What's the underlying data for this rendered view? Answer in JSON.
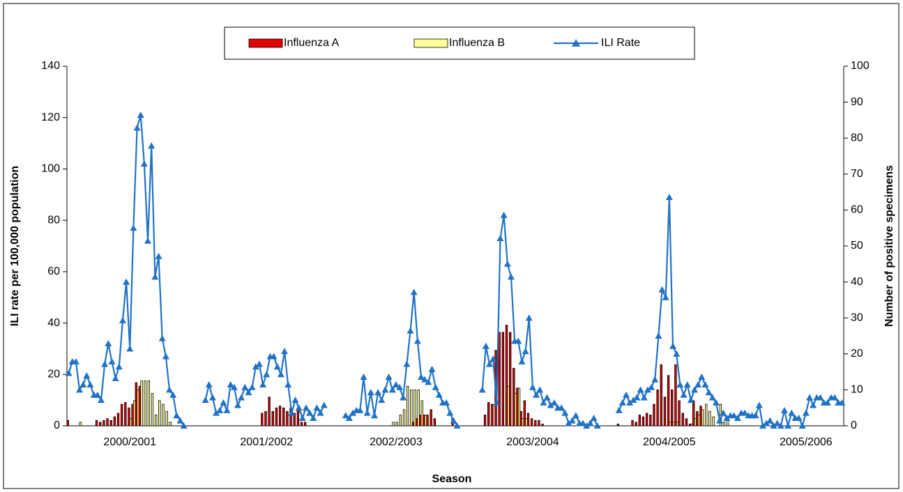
{
  "chart_data": {
    "type": "combo",
    "x_label": "Season",
    "y_label": "ILI rate per 100,000 population",
    "y2_label": "Number of positive specimens",
    "ylim": [
      0,
      140
    ],
    "yticks": [
      0,
      20,
      40,
      60,
      80,
      100,
      120,
      140
    ],
    "y2lim": [
      0,
      100
    ],
    "y2ticks": [
      0,
      10,
      20,
      30,
      40,
      50,
      60,
      70,
      80,
      90,
      100
    ],
    "legend": "top",
    "categories": [
      null,
      null,
      null,
      null,
      null,
      null,
      null,
      null,
      null,
      null,
      null,
      null,
      null,
      null,
      null,
      null,
      null,
      "2000/2001",
      null,
      null,
      null,
      null,
      null,
      null,
      null,
      null,
      null,
      null,
      null,
      null,
      null,
      null,
      null,
      null,
      null,
      null,
      null,
      null,
      null,
      null,
      null,
      null,
      null,
      null,
      null,
      null,
      null,
      null,
      null,
      null,
      null,
      null,
      null,
      null,
      null,
      "2001/2002",
      null,
      null,
      null,
      null,
      null,
      null,
      null,
      null,
      null,
      null,
      null,
      null,
      null,
      null,
      null,
      null,
      null,
      null,
      null,
      null,
      null,
      null,
      null,
      null,
      null,
      null,
      null,
      null,
      null,
      null,
      null,
      null,
      null,
      null,
      null,
      "2002/2003",
      null,
      null,
      null,
      null,
      null,
      null,
      null,
      null,
      null,
      null,
      null,
      null,
      null,
      null,
      null,
      null,
      null,
      null,
      null,
      null,
      null,
      null,
      null,
      null,
      null,
      null,
      null,
      null,
      null,
      null,
      null,
      null,
      null,
      null,
      null,
      null,
      null,
      "2003/2004",
      null,
      null,
      null,
      null,
      null,
      null,
      null,
      null,
      null,
      null,
      null,
      null,
      null,
      null,
      null,
      null,
      null,
      null,
      null,
      null,
      null,
      null,
      null,
      null,
      null,
      null,
      null,
      null,
      null,
      null,
      null,
      null,
      null,
      null,
      null,
      null,
      null,
      "2004/2005",
      null,
      null,
      null,
      null,
      null,
      null,
      null,
      null,
      null,
      null,
      null,
      null,
      null,
      null,
      null,
      null,
      null,
      null,
      null,
      null,
      null,
      null,
      null,
      null,
      null,
      null,
      null,
      null,
      null,
      null,
      null,
      null,
      null,
      null,
      null,
      null,
      null,
      "2005/2006",
      null,
      null,
      null,
      null,
      null,
      null,
      null,
      null,
      null,
      null
    ],
    "series": [
      {
        "name": "Influenza A",
        "type": "bar",
        "axis": "y2",
        "color": "#e00000",
        "values": [
          1.5,
          0,
          0,
          0,
          0,
          0,
          0,
          0,
          1.5,
          1,
          1.5,
          2,
          1.5,
          2.5,
          3.5,
          6,
          6.5,
          5,
          6,
          12,
          11,
          0,
          0,
          0,
          0,
          0,
          0,
          0,
          0,
          0,
          0,
          0,
          0,
          null,
          null,
          null,
          null,
          null,
          0,
          0,
          0,
          0,
          0,
          0,
          0,
          0,
          0,
          0,
          0,
          0,
          0,
          0,
          0,
          0,
          3.5,
          4,
          8,
          4,
          5,
          5.5,
          5,
          4,
          5,
          3.5,
          5,
          1,
          1,
          0,
          0,
          0,
          0,
          0,
          null,
          null,
          null,
          null,
          null,
          0,
          0,
          0,
          0,
          0,
          0,
          0,
          0,
          0,
          0,
          0,
          0,
          0,
          0,
          0,
          0,
          0,
          0,
          0,
          1,
          2,
          3,
          3,
          3,
          4.5,
          2,
          0,
          0,
          0,
          0,
          2,
          0,
          null,
          null,
          null,
          null,
          null,
          null,
          0,
          3,
          6.5,
          6,
          21,
          26,
          26,
          28,
          26,
          16,
          10.5,
          4,
          7,
          3.5,
          2,
          1.5,
          1.5,
          0.5,
          0,
          0,
          0,
          0,
          0,
          0,
          0,
          0,
          0,
          0,
          0,
          0,
          0,
          0,
          0,
          null,
          null,
          null,
          null,
          null,
          0.5,
          0,
          0,
          0,
          1.5,
          1,
          3,
          2.5,
          3.5,
          3,
          6,
          10,
          17,
          8,
          14,
          10,
          17,
          7,
          3.5,
          2,
          0.5,
          7,
          4,
          5.5,
          0,
          0,
          0,
          0,
          0,
          0,
          0,
          0,
          0,
          0,
          0,
          0,
          0,
          0,
          0,
          0,
          0,
          0,
          0,
          0,
          0,
          0,
          0,
          0,
          0,
          0,
          0,
          0,
          0,
          0,
          0,
          0,
          0,
          0,
          0,
          0,
          0,
          0,
          0
        ]
      },
      {
        "name": "Influenza B",
        "type": "bar",
        "axis": "y2",
        "color": "#ffff99",
        "values": [
          0,
          0,
          0,
          1,
          0,
          0,
          0,
          0,
          0,
          0,
          0,
          0,
          0,
          0,
          0,
          0,
          0,
          2,
          7,
          10,
          12.5,
          12.5,
          12.5,
          9,
          3,
          7,
          6,
          4,
          1,
          0,
          0,
          0,
          0,
          null,
          null,
          null,
          null,
          null,
          0,
          0,
          0,
          0,
          0,
          0,
          0,
          0,
          0,
          0,
          0,
          0,
          0,
          0,
          0,
          0,
          0,
          0,
          0,
          0,
          0,
          0,
          0,
          0,
          0,
          0,
          0,
          0,
          0,
          0,
          0,
          0,
          0,
          0,
          null,
          null,
          null,
          null,
          null,
          0,
          0,
          0,
          0,
          0,
          0,
          0,
          0,
          0,
          0,
          0,
          0,
          0,
          1,
          1,
          3,
          4.5,
          11,
          10,
          10,
          10,
          7,
          3,
          0,
          0,
          0,
          0,
          0,
          0,
          0,
          0,
          0,
          null,
          null,
          null,
          null,
          null,
          null,
          0,
          0,
          0,
          0,
          0,
          0,
          0,
          11,
          0,
          9,
          10.5,
          2,
          2,
          0,
          0,
          0,
          0,
          0,
          0,
          0,
          0,
          0,
          0,
          0,
          0,
          0,
          0,
          0,
          0,
          0,
          0,
          0,
          0,
          null,
          null,
          null,
          null,
          null,
          0,
          0,
          0,
          0,
          0,
          0,
          0,
          0,
          0,
          0,
          0,
          0,
          0,
          0,
          1,
          1,
          1,
          0,
          0,
          0,
          0.5,
          2,
          3,
          4.5,
          6,
          4,
          2.5,
          0,
          6,
          1,
          1.5,
          0,
          0,
          0,
          0,
          0,
          0,
          0,
          0,
          0,
          0,
          0,
          0,
          0,
          0,
          0,
          0,
          0,
          0,
          0,
          0,
          0,
          0,
          0,
          0,
          0,
          0,
          0,
          0,
          0,
          0,
          0,
          0
        ]
      },
      {
        "name": "ILI Rate",
        "type": "line",
        "axis": "y",
        "color": "#1f72c6",
        "values": [
          20.5,
          25,
          25,
          14,
          16,
          19.5,
          16,
          12,
          12,
          10,
          24,
          32,
          25,
          18.5,
          23,
          41,
          56,
          30,
          77,
          116,
          121,
          102,
          72,
          109,
          58,
          66,
          34,
          27,
          14,
          12,
          4,
          2,
          0,
          null,
          null,
          null,
          null,
          null,
          10,
          16,
          11,
          5,
          6,
          9,
          6,
          16,
          15,
          8,
          11,
          15,
          13,
          15,
          23,
          24,
          16,
          20,
          27,
          27,
          23,
          20,
          29,
          16,
          5,
          10,
          7,
          3,
          7,
          5,
          3,
          7,
          5,
          8,
          null,
          null,
          null,
          null,
          null,
          4,
          3,
          5,
          6,
          6,
          19,
          5,
          13,
          4,
          13,
          10,
          14,
          19,
          14,
          16,
          15,
          11,
          24,
          37,
          52,
          33,
          19,
          18,
          17,
          22,
          15,
          12,
          9,
          9,
          5,
          2,
          0,
          null,
          null,
          null,
          null,
          null,
          null,
          14,
          31,
          24,
          26,
          9,
          73,
          82,
          63,
          58,
          33,
          33,
          25,
          29,
          42,
          15,
          12,
          14,
          9,
          11,
          8,
          9,
          7,
          7,
          5,
          1,
          2,
          4,
          1,
          1,
          0,
          1,
          3,
          0,
          null,
          null,
          null,
          null,
          null,
          6,
          9,
          12,
          9,
          10,
          11,
          14,
          11,
          14,
          15,
          18,
          35,
          53,
          50,
          89,
          31,
          28,
          16,
          12,
          16,
          10,
          14,
          16,
          19,
          16,
          13,
          11,
          9,
          2,
          5,
          3,
          4,
          4,
          3,
          5,
          5,
          4,
          4,
          4,
          8,
          0,
          1,
          2,
          0,
          1,
          0,
          6,
          0,
          5,
          3,
          3,
          0,
          5,
          11,
          8,
          11,
          11,
          9,
          9,
          11,
          11,
          9,
          9
        ]
      }
    ]
  }
}
